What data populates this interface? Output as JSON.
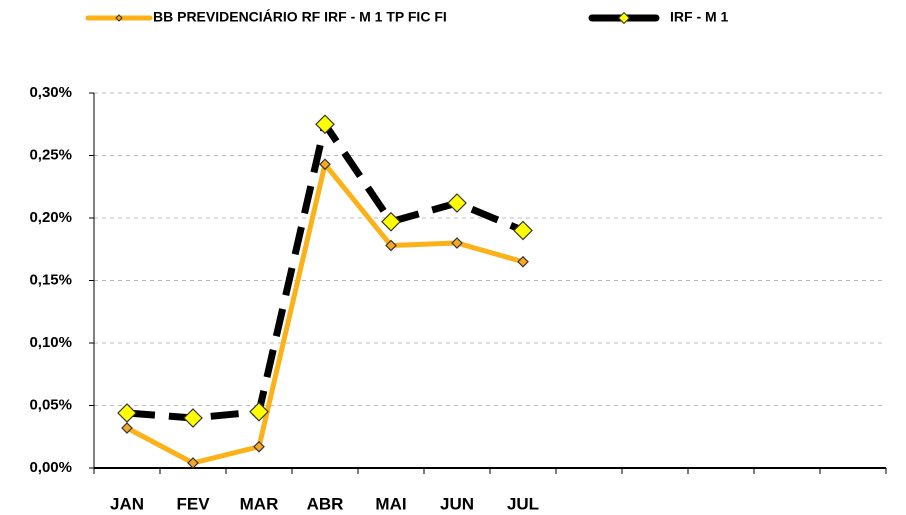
{
  "chart_data": {
    "type": "line",
    "categories": [
      "JAN",
      "FEV",
      "MAR",
      "ABR",
      "MAI",
      "JUN",
      "JUL",
      null,
      null,
      null,
      null,
      null
    ],
    "series": [
      {
        "name": "BB PREVIDENCIÁRIO RF IRF - M 1 TP FIC FI",
        "color": "#fbb117",
        "values": [
          0.032,
          0.004,
          0.017,
          0.243,
          0.178,
          0.18,
          0.165,
          null,
          null,
          null,
          null,
          null
        ]
      },
      {
        "name": "IRF - M 1",
        "color": "#000000",
        "values": [
          0.044,
          0.04,
          0.045,
          0.275,
          0.197,
          0.212,
          0.19,
          null,
          null,
          null,
          null,
          null
        ]
      }
    ],
    "ylim": [
      0,
      0.3
    ],
    "yticks": [
      {
        "value": 0,
        "label": "0,00%"
      },
      {
        "value": 0.05,
        "label": "0,05%"
      },
      {
        "value": 0.1,
        "label": "0,10%"
      },
      {
        "value": 0.15,
        "label": "0,15%"
      },
      {
        "value": 0.2,
        "label": "0,20%"
      },
      {
        "value": 0.25,
        "label": "0,25%"
      },
      {
        "value": 0.3,
        "label": "0,30%"
      }
    ],
    "grid": true
  }
}
